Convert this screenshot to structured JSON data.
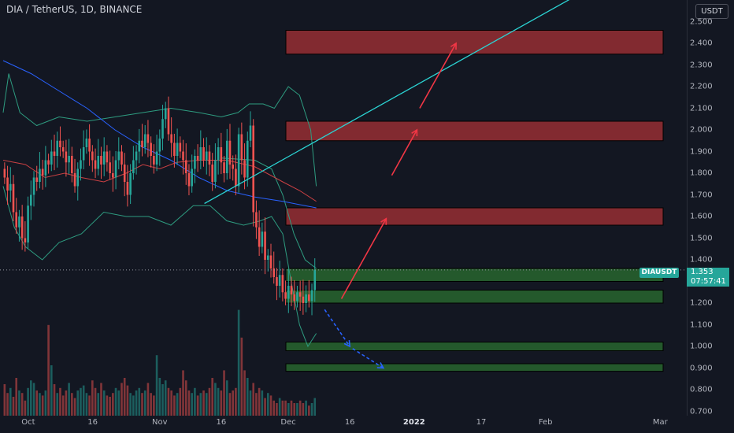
{
  "header": {
    "title": "DIA / TetherUS, 1D, BINANCE",
    "currency": "USDT"
  },
  "ticker": {
    "symbol": "DIAUSDT",
    "price": "1.353",
    "countdown": "07:57:41"
  },
  "colors": {
    "bg": "#131722",
    "up": "#26a69a",
    "down": "#ef5350",
    "bb": "#2e9c80",
    "ma_red": "#c94043",
    "ma_blue": "#2962ff",
    "trend": "#2bd3d3",
    "arrow_up": "#f23645",
    "arrow_down": "#2962ff",
    "zone_red": "#a83236",
    "zone_green": "#2e7d32"
  },
  "chart_data": {
    "type": "candlestick",
    "title": "DIA / TetherUS, 1D, BINANCE",
    "ylim": [
      0.68,
      2.6
    ],
    "y_ticks": [
      "2.500",
      "2.400",
      "2.300",
      "2.200",
      "2.100",
      "2.000",
      "1.900",
      "1.800",
      "1.700",
      "1.600",
      "1.500",
      "1.400",
      "1.300",
      "1.200",
      "1.100",
      "1.000",
      "0.900",
      "0.800",
      "0.700"
    ],
    "x_ticks": [
      {
        "label": "Oct",
        "bold": false
      },
      {
        "label": "16",
        "bold": false
      },
      {
        "label": "Nov",
        "bold": false
      },
      {
        "label": "16",
        "bold": false
      },
      {
        "label": "Dec",
        "bold": false
      },
      {
        "label": "16",
        "bold": false
      },
      {
        "label": "2022",
        "bold": true
      },
      {
        "label": "17",
        "bold": false
      },
      {
        "label": "Feb",
        "bold": false
      },
      {
        "label": "Mar",
        "bold": false
      }
    ],
    "closes": [
      1.78,
      1.72,
      1.75,
      1.62,
      1.55,
      1.6,
      1.5,
      1.48,
      1.65,
      1.7,
      1.78,
      1.76,
      1.82,
      1.79,
      1.86,
      1.84,
      1.9,
      1.88,
      1.95,
      1.92,
      1.9,
      1.85,
      1.88,
      1.8,
      1.74,
      1.82,
      1.86,
      1.92,
      1.96,
      1.9,
      1.86,
      1.82,
      1.88,
      1.84,
      1.9,
      1.85,
      1.8,
      1.78,
      1.86,
      1.9,
      1.84,
      1.76,
      1.7,
      1.8,
      1.86,
      1.9,
      1.95,
      1.92,
      1.98,
      1.94,
      1.88,
      1.84,
      1.9,
      1.96,
      2.05,
      2.1,
      1.98,
      1.94,
      1.88,
      1.94,
      1.9,
      1.86,
      1.8,
      1.74,
      1.82,
      1.88,
      1.86,
      1.92,
      1.86,
      1.9,
      1.84,
      1.76,
      1.86,
      1.92,
      1.85,
      1.8,
      1.95,
      1.84,
      1.82,
      1.74,
      1.98,
      1.86,
      1.78,
      1.95,
      2.02,
      1.62,
      1.55,
      1.46,
      1.53,
      1.4,
      1.42,
      1.36,
      1.32,
      1.28,
      1.33,
      1.25,
      1.22,
      1.28,
      1.24,
      1.21,
      1.25,
      1.23,
      1.2,
      1.24,
      1.21,
      1.26,
      1.353
    ],
    "volume": [
      0.25,
      0.18,
      0.22,
      0.15,
      0.3,
      0.2,
      0.18,
      0.12,
      0.22,
      0.28,
      0.26,
      0.2,
      0.18,
      0.16,
      0.2,
      0.72,
      0.4,
      0.25,
      0.18,
      0.22,
      0.16,
      0.2,
      0.26,
      0.18,
      0.14,
      0.2,
      0.22,
      0.24,
      0.18,
      0.16,
      0.28,
      0.22,
      0.18,
      0.26,
      0.2,
      0.16,
      0.15,
      0.18,
      0.22,
      0.2,
      0.26,
      0.3,
      0.24,
      0.18,
      0.16,
      0.2,
      0.22,
      0.18,
      0.2,
      0.26,
      0.18,
      0.16,
      0.48,
      0.3,
      0.25,
      0.28,
      0.22,
      0.2,
      0.16,
      0.18,
      0.22,
      0.36,
      0.28,
      0.2,
      0.18,
      0.22,
      0.16,
      0.18,
      0.2,
      0.18,
      0.22,
      0.3,
      0.26,
      0.22,
      0.2,
      0.36,
      0.28,
      0.18,
      0.2,
      0.22,
      0.84,
      0.62,
      0.36,
      0.3,
      0.2,
      0.26,
      0.18,
      0.22,
      0.2,
      0.14,
      0.18,
      0.16,
      0.12,
      0.1,
      0.14,
      0.12,
      0.12,
      0.1,
      0.12,
      0.1,
      0.1,
      0.12,
      0.1,
      0.12,
      0.08,
      0.1,
      0.14
    ],
    "ma_red": [
      [
        0.0,
        1.86
      ],
      [
        0.08,
        1.84
      ],
      [
        0.15,
        1.78
      ],
      [
        0.22,
        1.8
      ],
      [
        0.28,
        1.78
      ],
      [
        0.36,
        1.76
      ],
      [
        0.44,
        1.8
      ],
      [
        0.5,
        1.84
      ],
      [
        0.56,
        1.82
      ],
      [
        0.62,
        1.85
      ],
      [
        0.7,
        1.86
      ],
      [
        0.8,
        1.86
      ],
      [
        0.9,
        1.83
      ],
      [
        1.0,
        1.76
      ],
      [
        1.06,
        1.72
      ],
      [
        1.12,
        1.67
      ]
    ],
    "ma_blue": [
      [
        0.0,
        2.32
      ],
      [
        0.1,
        2.26
      ],
      [
        0.2,
        2.18
      ],
      [
        0.3,
        2.1
      ],
      [
        0.4,
        2.0
      ],
      [
        0.5,
        1.92
      ],
      [
        0.6,
        1.86
      ],
      [
        0.7,
        1.78
      ],
      [
        0.8,
        1.72
      ],
      [
        0.9,
        1.69
      ],
      [
        1.0,
        1.67
      ],
      [
        1.12,
        1.64
      ]
    ],
    "bb_upper": [
      [
        0.0,
        2.08
      ],
      [
        0.02,
        2.26
      ],
      [
        0.06,
        2.08
      ],
      [
        0.12,
        2.02
      ],
      [
        0.2,
        2.06
      ],
      [
        0.3,
        2.04
      ],
      [
        0.4,
        2.06
      ],
      [
        0.5,
        2.08
      ],
      [
        0.6,
        2.1
      ],
      [
        0.7,
        2.08
      ],
      [
        0.78,
        2.06
      ],
      [
        0.84,
        2.08
      ],
      [
        0.88,
        2.12
      ],
      [
        0.93,
        2.12
      ],
      [
        0.97,
        2.1
      ],
      [
        1.02,
        2.2
      ],
      [
        1.06,
        2.16
      ],
      [
        1.1,
        2.0
      ],
      [
        1.12,
        1.74
      ]
    ],
    "bb_lower": [
      [
        0.0,
        1.74
      ],
      [
        0.04,
        1.55
      ],
      [
        0.08,
        1.46
      ],
      [
        0.14,
        1.4
      ],
      [
        0.2,
        1.48
      ],
      [
        0.28,
        1.52
      ],
      [
        0.36,
        1.62
      ],
      [
        0.44,
        1.6
      ],
      [
        0.52,
        1.6
      ],
      [
        0.6,
        1.56
      ],
      [
        0.68,
        1.65
      ],
      [
        0.74,
        1.65
      ],
      [
        0.8,
        1.58
      ],
      [
        0.86,
        1.56
      ],
      [
        0.92,
        1.58
      ],
      [
        0.96,
        1.6
      ],
      [
        1.0,
        1.52
      ],
      [
        1.03,
        1.3
      ],
      [
        1.06,
        1.1
      ],
      [
        1.09,
        1.0
      ],
      [
        1.12,
        1.06
      ]
    ],
    "bb_mid": [
      [
        0.78,
        1.87
      ],
      [
        0.9,
        1.86
      ],
      [
        0.96,
        1.82
      ],
      [
        1.0,
        1.7
      ],
      [
        1.04,
        1.52
      ],
      [
        1.08,
        1.4
      ],
      [
        1.12,
        1.36
      ]
    ],
    "trend_line": [
      [
        0.72,
        1.66
      ],
      [
        2.05,
        2.62
      ]
    ],
    "zones": [
      {
        "kind": "resistance",
        "low": 2.35,
        "high": 2.46
      },
      {
        "kind": "resistance",
        "low": 1.95,
        "high": 2.04
      },
      {
        "kind": "resistance",
        "low": 1.56,
        "high": 1.64
      },
      {
        "kind": "support",
        "low": 1.3,
        "high": 1.36
      },
      {
        "kind": "support",
        "low": 1.2,
        "high": 1.26
      },
      {
        "kind": "support",
        "low": 0.98,
        "high": 1.02
      },
      {
        "kind": "support",
        "low": 0.885,
        "high": 0.92
      }
    ],
    "arrows_up": [
      [
        [
          1.21,
          1.22
        ],
        [
          1.37,
          1.59
        ]
      ],
      [
        [
          1.39,
          1.79
        ],
        [
          1.48,
          2.0
        ]
      ],
      [
        [
          1.49,
          2.1
        ],
        [
          1.62,
          2.4
        ]
      ]
    ],
    "arrows_down": [
      [
        [
          1.15,
          1.17
        ],
        [
          1.24,
          1.0
        ]
      ],
      [
        [
          1.25,
          0.99
        ],
        [
          1.36,
          0.9
        ]
      ]
    ]
  }
}
